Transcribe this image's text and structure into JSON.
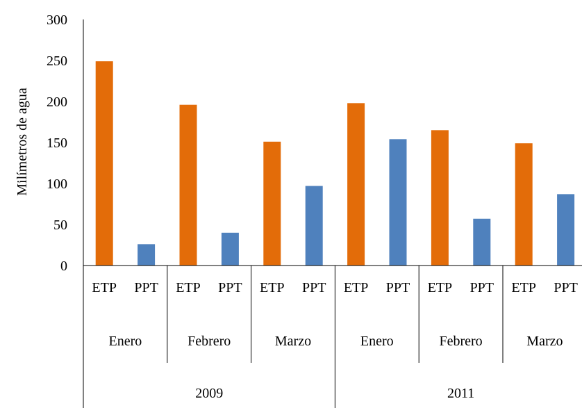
{
  "chart_data": {
    "type": "bar",
    "title": "",
    "ylabel": "Milímetros de agua",
    "xlabel": "",
    "ylim": [
      0,
      300
    ],
    "yticks": [
      "0",
      "50",
      "100",
      "150",
      "200",
      "250",
      "300"
    ],
    "grid": false,
    "colors": {
      "ETP": "#e36c09",
      "PPT": "#4f81bd"
    },
    "years": [
      {
        "label": "2009",
        "months": [
          {
            "label": "Enero",
            "bars": [
              {
                "label": "ETP",
                "value": 249
              },
              {
                "label": "PPT",
                "value": 26
              }
            ]
          },
          {
            "label": "Febrero",
            "bars": [
              {
                "label": "ETP",
                "value": 196
              },
              {
                "label": "PPT",
                "value": 40
              }
            ]
          },
          {
            "label": "Marzo",
            "bars": [
              {
                "label": "ETP",
                "value": 151
              },
              {
                "label": "PPT",
                "value": 97
              }
            ]
          }
        ]
      },
      {
        "label": "2011",
        "months": [
          {
            "label": "Enero",
            "bars": [
              {
                "label": "ETP",
                "value": 198
              },
              {
                "label": "PPT",
                "value": 154
              }
            ]
          },
          {
            "label": "Febrero",
            "bars": [
              {
                "label": "ETP",
                "value": 165
              },
              {
                "label": "PPT",
                "value": 57
              }
            ]
          },
          {
            "label": "Marzo",
            "bars": [
              {
                "label": "ETP",
                "value": 149
              },
              {
                "label": "PPT",
                "value": 87
              }
            ]
          }
        ]
      }
    ]
  }
}
